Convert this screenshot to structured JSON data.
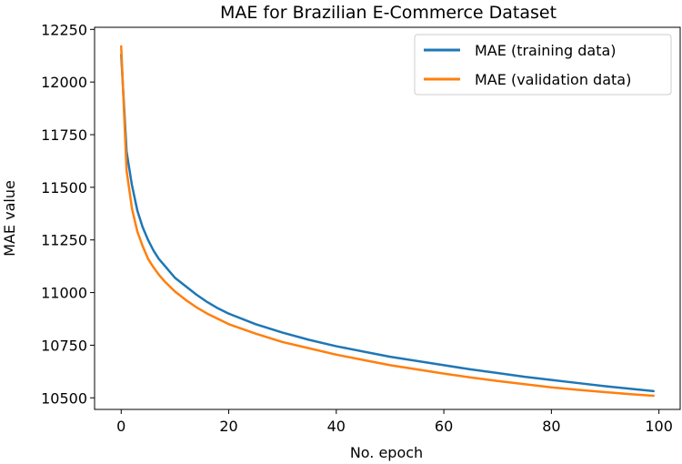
{
  "chart_data": {
    "type": "line",
    "title": "MAE for Brazilian E-Commerce Dataset",
    "xlabel": "No. epoch",
    "ylabel": "MAE value",
    "xlim": [
      -4.95,
      103.95
    ],
    "ylim": [
      10445,
      12260
    ],
    "xticks": [
      0,
      20,
      40,
      60,
      80,
      100
    ],
    "yticks": [
      10500,
      10750,
      11000,
      11250,
      11500,
      11750,
      12000,
      12250
    ],
    "grid": false,
    "legend_position": "top-right",
    "series": [
      {
        "name": "MAE (training data)",
        "color": "#1f77b4",
        "x": [
          0,
          1,
          2,
          3,
          4,
          5,
          6,
          7,
          8,
          9,
          10,
          12,
          14,
          16,
          18,
          20,
          25,
          30,
          35,
          40,
          45,
          50,
          55,
          60,
          65,
          70,
          75,
          80,
          85,
          90,
          95,
          99
        ],
        "y": [
          12130,
          11670,
          11510,
          11390,
          11310,
          11250,
          11200,
          11160,
          11130,
          11100,
          11070,
          11030,
          10990,
          10955,
          10925,
          10900,
          10850,
          10810,
          10775,
          10745,
          10720,
          10695,
          10675,
          10655,
          10635,
          10618,
          10600,
          10585,
          10570,
          10555,
          10542,
          10532
        ]
      },
      {
        "name": "MAE (validation data)",
        "color": "#ff7f0e",
        "x": [
          0,
          1,
          2,
          3,
          4,
          5,
          6,
          7,
          8,
          9,
          10,
          12,
          14,
          16,
          18,
          20,
          25,
          30,
          35,
          40,
          45,
          50,
          55,
          60,
          65,
          70,
          75,
          80,
          85,
          90,
          95,
          99
        ],
        "y": [
          12170,
          11580,
          11400,
          11290,
          11220,
          11160,
          11120,
          11085,
          11055,
          11030,
          11005,
          10965,
          10930,
          10900,
          10875,
          10850,
          10805,
          10765,
          10735,
          10705,
          10680,
          10655,
          10635,
          10615,
          10597,
          10580,
          10565,
          10550,
          10538,
          10527,
          10517,
          10510
        ]
      }
    ]
  }
}
